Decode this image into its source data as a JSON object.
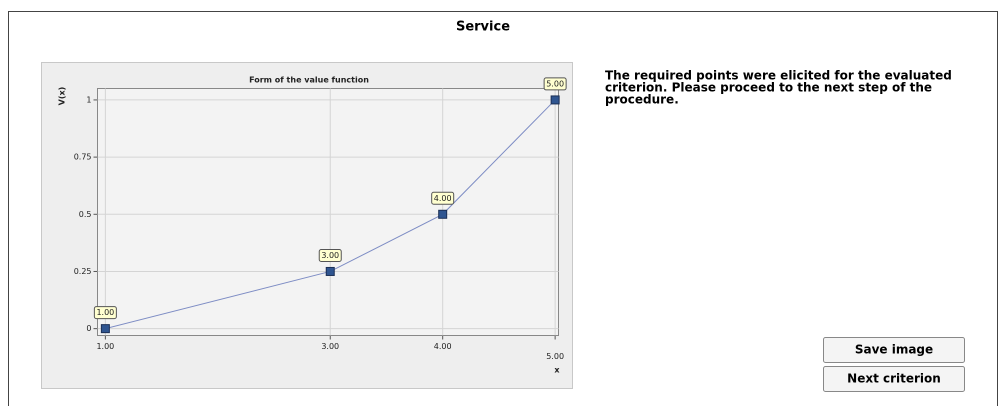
{
  "title": "Service",
  "chart_data": {
    "type": "line",
    "title": "Form of the value function",
    "x_label": "x",
    "y_label": "V(x)",
    "x": [
      1,
      3,
      4,
      5
    ],
    "series": [
      {
        "name": "V(x)",
        "color": "#7d8cc4",
        "marker_color": "#2f5590",
        "values": [
          0,
          0.25,
          0.5,
          1
        ],
        "point_labels": [
          "1.00",
          "3.00",
          "4.00",
          "5.00"
        ]
      }
    ],
    "xlim": [
      0.93,
      5.03
    ],
    "ylim": [
      -0.03,
      1.05
    ],
    "xticks": [
      {
        "value": 1,
        "label": "1.00"
      },
      {
        "value": 3,
        "label": "3.00"
      },
      {
        "value": 4,
        "label": "4.00"
      },
      {
        "value": 5,
        "label": "5.00"
      }
    ],
    "yticks": [
      0,
      0.25,
      0.5,
      0.75,
      1
    ],
    "grid": true
  },
  "message": [
    "The required points were elicited for the evaluated",
    "criterion. Please proceed to the next step of the",
    "procedure."
  ],
  "buttons": [
    "Save image",
    "Next criterion"
  ]
}
